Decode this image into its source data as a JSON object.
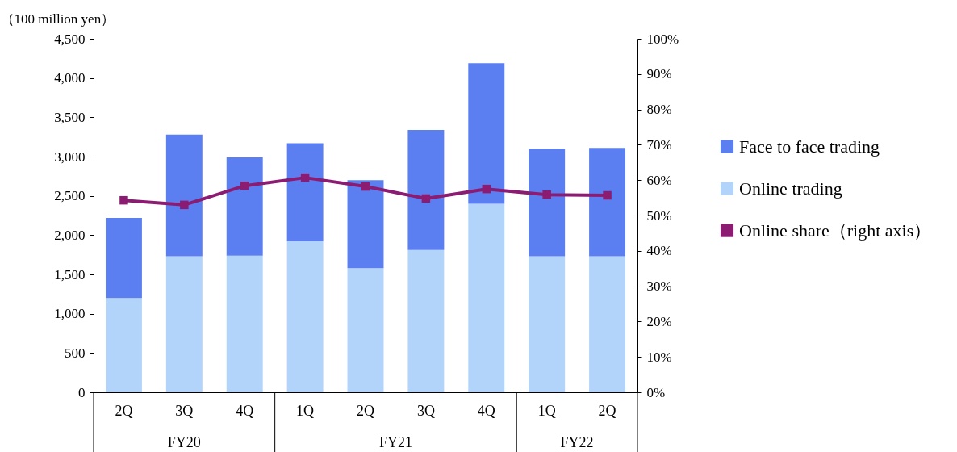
{
  "chart_data": {
    "type": "bar",
    "stacked": true,
    "ylabel": "（100 million yen）",
    "categories": [
      "2Q",
      "3Q",
      "4Q",
      "1Q",
      "2Q",
      "3Q",
      "4Q",
      "1Q",
      "2Q"
    ],
    "annotations": [
      "FY20",
      "FY21",
      "FY22"
    ],
    "series": [
      {
        "name": "Online trading",
        "color": "#b3d4fa",
        "values": [
          1200,
          1730,
          1740,
          1920,
          1580,
          1810,
          2400,
          1730,
          1730
        ]
      },
      {
        "name": "Face to face trading",
        "color": "#5b7ff0",
        "values": [
          1020,
          1550,
          1250,
          1250,
          1120,
          1530,
          1790,
          1370,
          1380
        ]
      },
      {
        "name": "Online share（right axis）",
        "type": "line",
        "axis": "y2",
        "color": "#8b1c72",
        "marker": "square",
        "line_style": "solid",
        "values": [
          54.3,
          53.0,
          58.4,
          60.7,
          58.2,
          54.8,
          57.5,
          55.9,
          55.7
        ]
      }
    ],
    "ylim": [
      0,
      4500
    ],
    "yticks": [
      0,
      500,
      {
        "value": 1000,
        "label": "1,000"
      },
      {
        "value": 1500,
        "label": "1,500"
      },
      {
        "value": 2000,
        "label": "2,000"
      },
      {
        "value": 2500,
        "label": "2,500"
      },
      {
        "value": 3000,
        "label": "3,000"
      },
      {
        "value": 3500,
        "label": "3,500"
      },
      {
        "value": 4000,
        "label": "4,000"
      },
      {
        "value": 4500,
        "label": "4,500"
      }
    ],
    "y2lim": [
      0,
      100
    ],
    "y2ticks": [
      {
        "value": 0,
        "label": "0%"
      },
      {
        "value": 10,
        "label": "10%"
      },
      {
        "value": 20,
        "label": "20%"
      },
      {
        "value": 30,
        "label": "30%"
      },
      {
        "value": 40,
        "label": "40%"
      },
      {
        "value": 50,
        "label": "50%"
      },
      {
        "value": 60,
        "label": "60%"
      },
      {
        "value": 70,
        "label": "70%"
      },
      {
        "value": 80,
        "label": "80%"
      },
      {
        "value": 90,
        "label": "90%"
      },
      {
        "value": 100,
        "label": "100%"
      }
    ],
    "legend": "right"
  }
}
